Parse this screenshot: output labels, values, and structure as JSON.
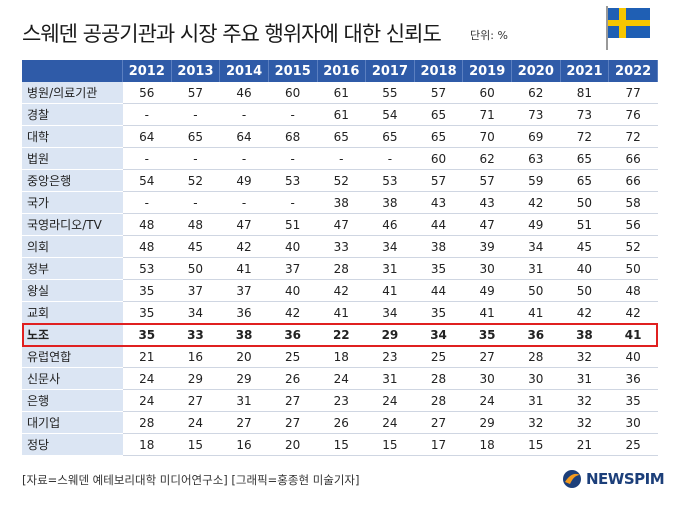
{
  "header": {
    "title": "스웨덴 공공기관과 시장 주요 행위자에 대한 신뢰도",
    "unit": "단위: %"
  },
  "table": {
    "columns": [
      2012,
      2013,
      2014,
      2015,
      2016,
      2017,
      2018,
      2019,
      2020,
      2021,
      2022
    ],
    "rows": [
      {
        "label": "병원/의료기관",
        "values": [
          56,
          57,
          46,
          60,
          61,
          55,
          57,
          60,
          62,
          81,
          77
        ]
      },
      {
        "label": "경찰",
        "values": [
          "-",
          "-",
          "-",
          "-",
          61,
          54,
          65,
          71,
          73,
          73,
          76
        ]
      },
      {
        "label": "대학",
        "values": [
          64,
          65,
          64,
          68,
          65,
          65,
          65,
          70,
          69,
          72,
          72
        ]
      },
      {
        "label": "법원",
        "values": [
          "-",
          "-",
          "-",
          "-",
          "-",
          "-",
          60,
          62,
          63,
          65,
          66
        ]
      },
      {
        "label": "중앙은행",
        "values": [
          54,
          52,
          49,
          53,
          52,
          53,
          57,
          57,
          59,
          65,
          66
        ]
      },
      {
        "label": "국가",
        "values": [
          "-",
          "-",
          "-",
          "-",
          38,
          38,
          43,
          43,
          42,
          50,
          58
        ]
      },
      {
        "label": "국영라디오/TV",
        "values": [
          48,
          48,
          47,
          51,
          47,
          46,
          44,
          47,
          49,
          51,
          56
        ]
      },
      {
        "label": "의회",
        "values": [
          48,
          45,
          42,
          40,
          33,
          34,
          38,
          39,
          34,
          45,
          52
        ]
      },
      {
        "label": "정부",
        "values": [
          53,
          50,
          41,
          37,
          28,
          31,
          35,
          30,
          31,
          40,
          50
        ]
      },
      {
        "label": "왕실",
        "values": [
          35,
          37,
          37,
          40,
          42,
          41,
          44,
          49,
          50,
          50,
          48
        ]
      },
      {
        "label": "교회",
        "values": [
          35,
          34,
          36,
          42,
          41,
          34,
          35,
          41,
          41,
          42,
          42
        ]
      },
      {
        "label": "노조",
        "values": [
          35,
          33,
          38,
          36,
          22,
          29,
          34,
          35,
          36,
          38,
          41
        ],
        "highlight": true
      },
      {
        "label": "유럽연합",
        "values": [
          21,
          16,
          20,
          25,
          18,
          23,
          25,
          27,
          28,
          32,
          40
        ]
      },
      {
        "label": "신문사",
        "values": [
          24,
          29,
          29,
          26,
          24,
          31,
          28,
          30,
          30,
          31,
          36
        ]
      },
      {
        "label": "은행",
        "values": [
          24,
          27,
          31,
          27,
          23,
          24,
          28,
          24,
          31,
          32,
          35
        ]
      },
      {
        "label": "대기업",
        "values": [
          28,
          24,
          27,
          27,
          26,
          24,
          27,
          29,
          32,
          32,
          30
        ]
      },
      {
        "label": "정당",
        "values": [
          18,
          15,
          16,
          20,
          15,
          15,
          17,
          18,
          15,
          21,
          25
        ]
      }
    ]
  },
  "footer": {
    "source": "[자료=스웨덴 예테보리대학 미디어연구소] [그래픽=홍종현 미술기자]",
    "logo": "NEWSPIM"
  }
}
